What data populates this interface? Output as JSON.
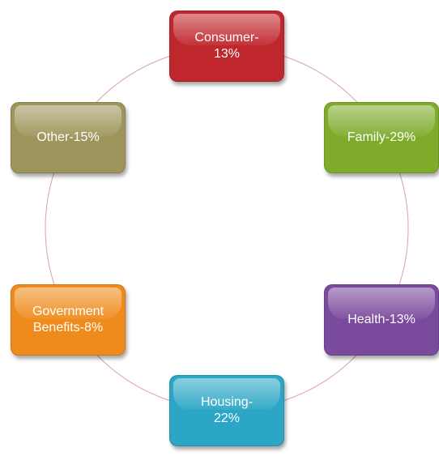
{
  "nodes": [
    {
      "label": "Consumer-\n13%",
      "color": "#c0272d"
    },
    {
      "label": "Family-29%",
      "color": "#7fab2b"
    },
    {
      "label": "Health-13%",
      "color": "#7a4a9c"
    },
    {
      "label": "Housing-\n22%",
      "color": "#2ba6c6"
    },
    {
      "label": "Government\nBenefits-8%",
      "color": "#ef8b1c"
    },
    {
      "label": "Other-15%",
      "color": "#9d955b"
    }
  ]
}
